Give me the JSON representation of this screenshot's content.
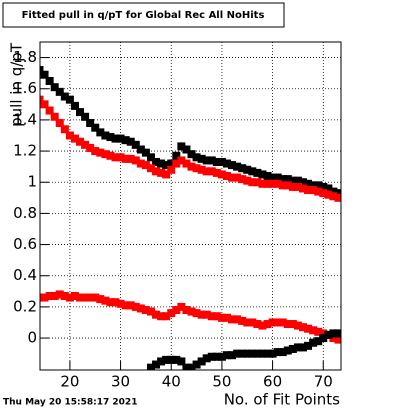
{
  "chart_data": {
    "type": "scatter",
    "title": "Fitted pull in q/pT for Global Rec All NoHits",
    "x_label": "No. of Fit Points",
    "y_label": "pull in q/pT",
    "timestamp": "Thu May 20 15:58:17 2021",
    "x": [
      14,
      15,
      16,
      17,
      18,
      19,
      20,
      21,
      22,
      23,
      24,
      25,
      26,
      27,
      28,
      29,
      30,
      31,
      32,
      33,
      34,
      35,
      36,
      37,
      38,
      39,
      40,
      41,
      42,
      43,
      44,
      45,
      46,
      47,
      48,
      49,
      50,
      51,
      52,
      53,
      54,
      55,
      56,
      57,
      58,
      59,
      60,
      61,
      62,
      63,
      64,
      65,
      66,
      67,
      68,
      69,
      70,
      71,
      72,
      73
    ],
    "series": [
      {
        "color": "#000000",
        "values": [
          1.72,
          1.69,
          1.65,
          1.61,
          1.58,
          1.55,
          1.53,
          1.49,
          1.45,
          1.42,
          1.38,
          1.35,
          1.32,
          1.3,
          1.29,
          1.28,
          1.28,
          1.27,
          1.26,
          1.24,
          1.21,
          1.19,
          1.16,
          1.13,
          1.12,
          1.11,
          1.12,
          1.17,
          1.23,
          1.21,
          1.18,
          1.16,
          1.15,
          1.14,
          1.14,
          1.13,
          1.13,
          1.12,
          1.11,
          1.1,
          1.09,
          1.08,
          1.07,
          1.06,
          1.05,
          1.04,
          1.03,
          1.03,
          1.02,
          1.02,
          1.01,
          1.01,
          1.0,
          0.99,
          0.98,
          0.98,
          0.97,
          0.96,
          0.94,
          0.93
        ]
      },
      {
        "color": "#ff0000",
        "values": [
          1.53,
          1.5,
          1.46,
          1.42,
          1.38,
          1.34,
          1.3,
          1.28,
          1.26,
          1.24,
          1.22,
          1.2,
          1.19,
          1.18,
          1.17,
          1.16,
          1.16,
          1.15,
          1.15,
          1.14,
          1.12,
          1.11,
          1.09,
          1.07,
          1.06,
          1.05,
          1.08,
          1.12,
          1.14,
          1.12,
          1.1,
          1.09,
          1.08,
          1.07,
          1.07,
          1.06,
          1.05,
          1.04,
          1.03,
          1.03,
          1.02,
          1.01,
          1.0,
          1.0,
          0.99,
          0.99,
          0.99,
          0.99,
          0.98,
          0.98,
          0.97,
          0.97,
          0.96,
          0.95,
          0.95,
          0.94,
          0.93,
          0.92,
          0.91,
          0.9
        ]
      },
      {
        "color": "#ff0000",
        "values": [
          0.26,
          0.26,
          0.27,
          0.27,
          0.28,
          0.27,
          0.26,
          0.27,
          0.26,
          0.26,
          0.26,
          0.26,
          0.25,
          0.24,
          0.23,
          0.23,
          0.22,
          0.21,
          0.21,
          0.2,
          0.19,
          0.18,
          0.17,
          0.15,
          0.14,
          0.14,
          0.16,
          0.18,
          0.2,
          0.18,
          0.17,
          0.16,
          0.15,
          0.15,
          0.14,
          0.14,
          0.13,
          0.13,
          0.12,
          0.12,
          0.11,
          0.1,
          0.1,
          0.09,
          0.08,
          0.09,
          0.1,
          0.1,
          0.1,
          0.09,
          0.09,
          0.08,
          0.07,
          0.06,
          0.05,
          0.04,
          0.03,
          0.02,
          0.0,
          -0.01
        ]
      },
      {
        "color": "#000000",
        "values": [
          null,
          null,
          null,
          null,
          null,
          null,
          null,
          null,
          null,
          null,
          null,
          null,
          null,
          null,
          null,
          null,
          null,
          null,
          null,
          null,
          null,
          null,
          -0.19,
          -0.17,
          -0.15,
          -0.14,
          -0.14,
          -0.14,
          -0.15,
          -0.19,
          -0.19,
          -0.17,
          -0.15,
          -0.13,
          -0.12,
          -0.12,
          -0.12,
          -0.11,
          -0.11,
          -0.1,
          -0.1,
          -0.1,
          -0.1,
          -0.1,
          -0.1,
          -0.1,
          -0.1,
          -0.09,
          -0.09,
          -0.08,
          -0.07,
          -0.06,
          -0.06,
          -0.05,
          -0.03,
          -0.02,
          0.0,
          0.02,
          0.03,
          0.03
        ]
      }
    ],
    "xlim": [
      14.1,
      73.5
    ],
    "ylim": [
      -0.205,
      1.9
    ],
    "xticks": [
      20,
      30,
      40,
      50,
      60,
      70
    ],
    "yticks": [
      0,
      0.2,
      0.4,
      0.6,
      0.8,
      1,
      1.2,
      1.4,
      1.6,
      1.8
    ],
    "grid": true
  }
}
